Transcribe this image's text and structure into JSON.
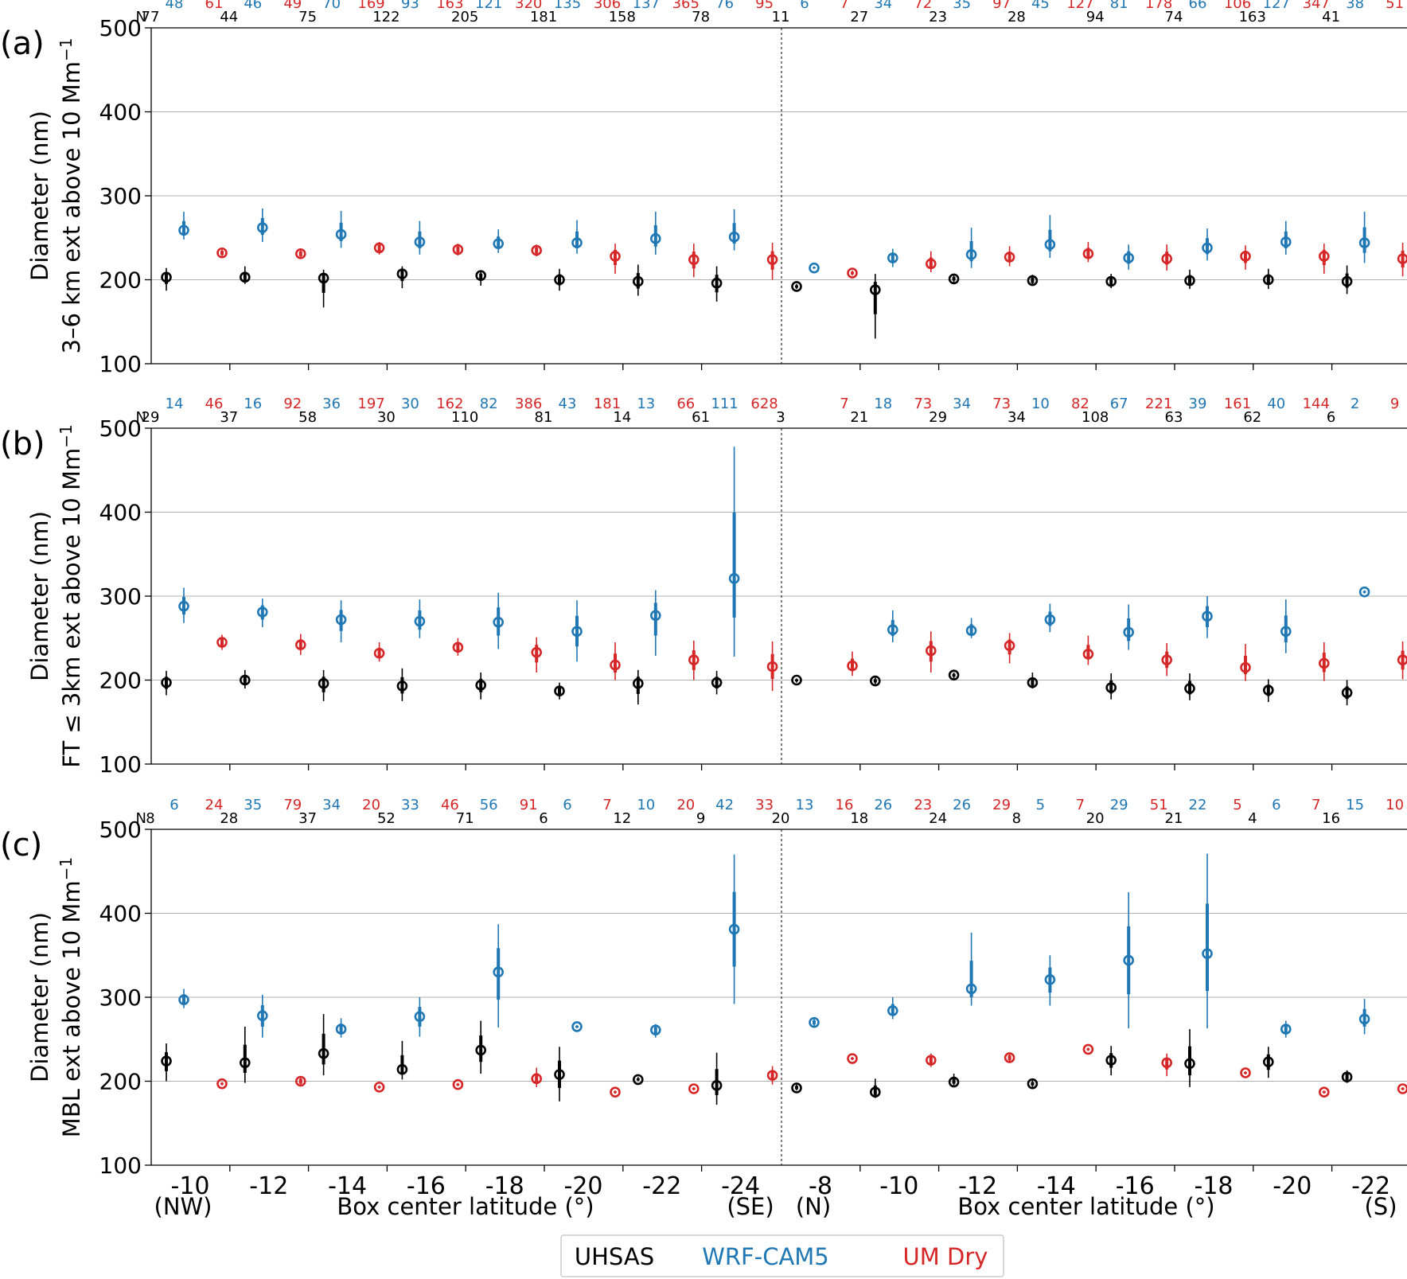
{
  "colors": {
    "uhsas": "#000000",
    "wrf": "#1f77b4",
    "um": "#d62728",
    "grid": "#b0b0b0"
  },
  "legend": {
    "position": "bottom-center",
    "entries": [
      "UHSAS",
      "WRF-CAM5",
      "UM Dry"
    ]
  },
  "axes": {
    "x_title_left": "Box center latitude (°)",
    "x_title_right": "Box center latitude (°)",
    "x_end_left_start": "(NW)",
    "x_end_left_end": "(SE)",
    "x_end_right_start": "(N)",
    "x_end_right_end": "(S)",
    "left_ticks": [
      "-10",
      "-12",
      "-14",
      "-16",
      "-18",
      "-20",
      "-22",
      "-24"
    ],
    "right_ticks": [
      "-8",
      "-10",
      "-12",
      "-14",
      "-16",
      "-18",
      "-20",
      "-22"
    ],
    "y_ticks": [
      "100",
      "200",
      "300",
      "400",
      "500"
    ],
    "n_label": "N"
  },
  "panels": [
    {
      "letter": "(a)",
      "ylabel_line1": "Diameter (nm)",
      "ylabel_line2": "3–6 km ext above 10 Mm",
      "ylabel_sup": "−1",
      "n_uhsas": [
        "77",
        "44",
        "75",
        "122",
        "205",
        "181",
        "158",
        "78",
        "11",
        "27",
        "23",
        "28",
        "94",
        "74",
        "163",
        "41"
      ],
      "n_wrf": [
        "48",
        "46",
        "70",
        "93",
        "121",
        "135",
        "137",
        "76",
        "6",
        "34",
        "35",
        "45",
        "81",
        "66",
        "127",
        "38"
      ],
      "n_um": [
        "61",
        "49",
        "169",
        "163",
        "320",
        "306",
        "365",
        "95",
        "7",
        "72",
        "97",
        "127",
        "178",
        "106",
        "347",
        "51"
      ]
    },
    {
      "letter": "(b)",
      "ylabel_line1": "Diameter (nm)",
      "ylabel_line2": "FT ≤ 3km ext above 10 Mm",
      "ylabel_sup": "−1",
      "n_uhsas": [
        "29",
        "37",
        "58",
        "30",
        "110",
        "81",
        "14",
        "61",
        "3",
        "21",
        "29",
        "34",
        "108",
        "63",
        "62",
        "6"
      ],
      "n_wrf": [
        "14",
        "16",
        "36",
        "30",
        "82",
        "43",
        "13",
        "111",
        "",
        "18",
        "34",
        "10",
        "67",
        "39",
        "40",
        "2"
      ],
      "n_um": [
        "46",
        "92",
        "197",
        "162",
        "386",
        "181",
        "66",
        "628",
        "7",
        "73",
        "73",
        "82",
        "221",
        "161",
        "144",
        "9"
      ]
    },
    {
      "letter": "(c)",
      "ylabel_line1": "Diameter (nm)",
      "ylabel_line2": "MBL ext above 10 Mm",
      "ylabel_sup": "−1",
      "n_uhsas": [
        "8",
        "28",
        "37",
        "52",
        "71",
        "6",
        "12",
        "9",
        "20",
        "18",
        "24",
        "8",
        "20",
        "21",
        "4",
        "16"
      ],
      "n_wrf": [
        "6",
        "35",
        "34",
        "33",
        "56",
        "6",
        "10",
        "42",
        "13",
        "26",
        "26",
        "5",
        "29",
        "22",
        "6",
        "15"
      ],
      "n_um": [
        "24",
        "79",
        "20",
        "46",
        "91",
        "7",
        "20",
        "33",
        "16",
        "23",
        "29",
        "7",
        "51",
        "5",
        "7",
        "10"
      ]
    }
  ],
  "chart_data": [
    {
      "type": "scatter",
      "panel": "(a)",
      "categories": [
        "-10",
        "-12",
        "-14",
        "-16",
        "-18",
        "-20",
        "-22",
        "-24",
        "-8",
        "-10",
        "-12",
        "-14",
        "-16",
        "-18",
        "-20",
        "-22"
      ],
      "ylim": [
        100,
        500
      ],
      "ylabel": "Diameter (nm) 3–6 km ext above 10 Mm−1",
      "xlabel": "Box center latitude (°)",
      "grid": true,
      "series": [
        {
          "name": "UHSAS",
          "values": [
            203,
            203,
            202,
            207,
            205,
            200,
            198,
            196,
            192,
            188,
            201,
            199,
            198,
            199,
            200,
            198
          ],
          "whisker_low": [
            187,
            195,
            167,
            190,
            193,
            187,
            181,
            174,
            189,
            130,
            197,
            193,
            190,
            189,
            189,
            183
          ],
          "whisker_high": [
            214,
            216,
            212,
            216,
            210,
            213,
            218,
            216,
            195,
            207,
            206,
            206,
            207,
            212,
            213,
            217
          ]
        },
        {
          "name": "WRF-CAM5",
          "values": [
            259,
            262,
            254,
            245,
            243,
            244,
            249,
            251,
            214,
            226,
            230,
            242,
            226,
            238,
            245,
            244
          ],
          "whisker_low": [
            248,
            245,
            238,
            230,
            232,
            231,
            230,
            235,
            213,
            215,
            214,
            226,
            212,
            223,
            230,
            220
          ],
          "whisker_high": [
            281,
            285,
            282,
            270,
            260,
            271,
            281,
            284,
            216,
            237,
            262,
            277,
            242,
            261,
            270,
            281
          ]
        },
        {
          "name": "UM Dry",
          "values": [
            232,
            231,
            238,
            236,
            235,
            228,
            224,
            224,
            208,
            219,
            227,
            231,
            225,
            228,
            228,
            225
          ],
          "whisker_low": [
            227,
            225,
            230,
            229,
            228,
            207,
            203,
            200,
            205,
            209,
            216,
            221,
            211,
            212,
            207,
            204
          ],
          "whisker_high": [
            237,
            237,
            245,
            243,
            242,
            243,
            243,
            244,
            211,
            234,
            240,
            245,
            242,
            241,
            243,
            244
          ]
        }
      ]
    },
    {
      "type": "scatter",
      "panel": "(b)",
      "categories": [
        "-10",
        "-12",
        "-14",
        "-16",
        "-18",
        "-20",
        "-22",
        "-24",
        "-8",
        "-10",
        "-12",
        "-14",
        "-16",
        "-18",
        "-20",
        "-22"
      ],
      "ylim": [
        100,
        500
      ],
      "ylabel": "Diameter (nm) FT ≤ 3km ext above 10 Mm−1",
      "xlabel": "Box center latitude (°)",
      "grid": true,
      "series": [
        {
          "name": "UHSAS",
          "values": [
            197,
            200,
            196,
            193,
            194,
            187,
            196,
            197,
            200,
            199,
            206,
            197,
            191,
            190,
            188,
            185
          ],
          "whisker_low": [
            182,
            190,
            175,
            175,
            177,
            177,
            171,
            183,
            197,
            195,
            202,
            190,
            177,
            176,
            174,
            170
          ],
          "whisker_high": [
            211,
            212,
            212,
            214,
            209,
            197,
            212,
            211,
            202,
            203,
            209,
            209,
            208,
            208,
            201,
            200
          ]
        },
        {
          "name": "WRF-CAM5",
          "values": [
            288,
            281,
            272,
            270,
            269,
            258,
            277,
            321,
            null,
            260,
            259,
            272,
            257,
            276,
            258,
            305
          ],
          "whisker_low": [
            268,
            263,
            245,
            250,
            237,
            222,
            229,
            228,
            null,
            245,
            250,
            257,
            236,
            250,
            232,
            303
          ],
          "whisker_high": [
            310,
            297,
            295,
            296,
            304,
            295,
            307,
            478,
            null,
            283,
            274,
            291,
            290,
            300,
            296,
            307
          ]
        },
        {
          "name": "UM Dry",
          "values": [
            245,
            242,
            232,
            239,
            233,
            218,
            224,
            216,
            217,
            235,
            241,
            231,
            224,
            215,
            220,
            224
          ],
          "whisker_low": [
            236,
            230,
            222,
            229,
            209,
            200,
            200,
            187,
            205,
            209,
            220,
            218,
            205,
            199,
            199,
            201
          ],
          "whisker_high": [
            254,
            255,
            245,
            250,
            251,
            245,
            247,
            246,
            234,
            258,
            256,
            253,
            244,
            243,
            245,
            246
          ]
        }
      ]
    },
    {
      "type": "scatter",
      "panel": "(c)",
      "categories": [
        "-10",
        "-12",
        "-14",
        "-16",
        "-18",
        "-20",
        "-22",
        "-24",
        "-8",
        "-10",
        "-12",
        "-14",
        "-16",
        "-18",
        "-20",
        "-22"
      ],
      "ylim": [
        100,
        500
      ],
      "ylabel": "Diameter (nm) MBL ext above 10 Mm−1",
      "xlabel": "Box center latitude (°)",
      "grid": true,
      "series": [
        {
          "name": "UHSAS",
          "values": [
            224,
            222,
            233,
            214,
            237,
            208,
            202,
            195,
            192,
            187,
            199,
            197,
            225,
            221,
            223,
            205
          ],
          "whisker_low": [
            200,
            198,
            207,
            202,
            209,
            176,
            200,
            172,
            189,
            180,
            195,
            193,
            207,
            193,
            204,
            198
          ],
          "whisker_high": [
            245,
            265,
            280,
            248,
            272,
            241,
            205,
            234,
            197,
            203,
            209,
            201,
            242,
            262,
            241,
            213
          ]
        },
        {
          "name": "WRF-CAM5",
          "values": [
            297,
            278,
            262,
            277,
            330,
            265,
            261,
            381,
            270,
            284,
            310,
            321,
            344,
            352,
            262,
            274
          ],
          "whisker_low": [
            287,
            252,
            252,
            253,
            264,
            263,
            252,
            292,
            265,
            274,
            290,
            290,
            263,
            263,
            252,
            256
          ],
          "whisker_high": [
            310,
            303,
            275,
            300,
            387,
            267,
            268,
            470,
            275,
            300,
            377,
            350,
            425,
            471,
            272,
            298
          ]
        },
        {
          "name": "UM Dry",
          "values": [
            197,
            200,
            193,
            196,
            203,
            187,
            191,
            207,
            227,
            225,
            228,
            238,
            222,
            210,
            187,
            191
          ],
          "whisker_low": [
            195,
            194,
            191,
            194,
            193,
            185,
            189,
            196,
            225,
            217,
            222,
            236,
            206,
            208,
            185,
            189
          ],
          "whisker_high": [
            199,
            206,
            195,
            198,
            216,
            189,
            193,
            218,
            229,
            233,
            234,
            240,
            233,
            212,
            189,
            193
          ]
        }
      ]
    }
  ]
}
